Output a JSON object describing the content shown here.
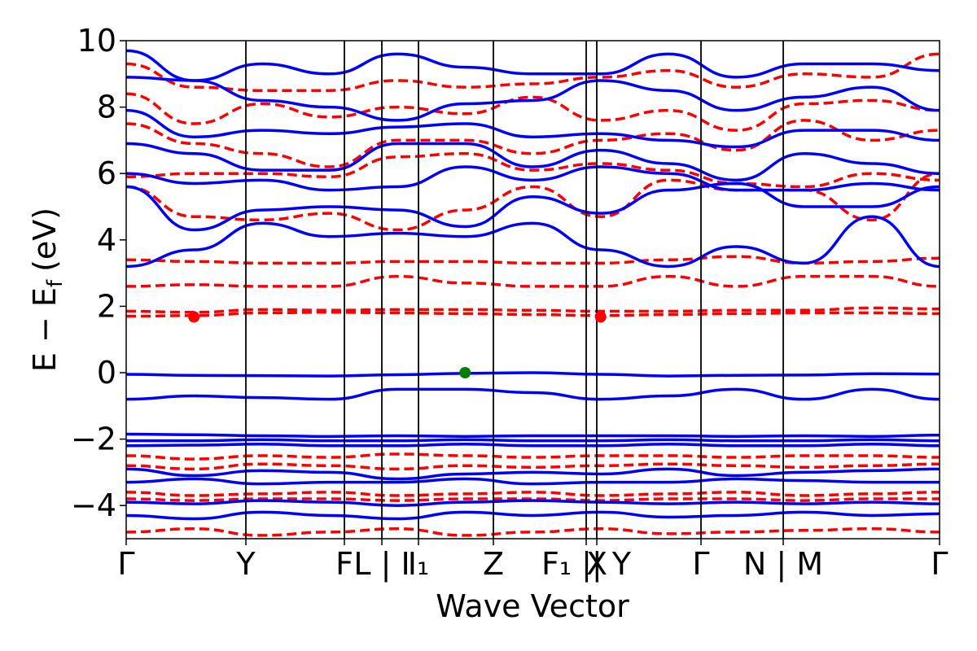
{
  "chart_data": {
    "type": "line",
    "title": "",
    "xlabel": "Wave Vector",
    "ylabel": "E − E_f (eV)",
    "ylabel_parts": {
      "main": "E − E",
      "sub": "f",
      "unit": "(eV)"
    },
    "ylim": [
      -5,
      10
    ],
    "yticks": [
      -4,
      -2,
      0,
      2,
      4,
      6,
      8,
      10
    ],
    "ytick_labels": [
      "−4",
      "−2",
      "0",
      "2",
      "4",
      "6",
      "8",
      "10"
    ],
    "k_path_labels": [
      "Γ",
      "Y",
      "F",
      "L",
      "I",
      "I₁",
      "Z",
      "F₁",
      "Y",
      "X",
      "Γ",
      "N",
      "M",
      "Γ"
    ],
    "xtick_labels": [
      "Γ",
      "Y",
      "F",
      "L | I",
      "I₁",
      "Z",
      "F₁ || Y",
      "X",
      "Γ",
      "N | M",
      "Γ"
    ],
    "grid": false,
    "legend": "none",
    "colors": {
      "spin_up": "#0000ff",
      "spin_down": "#ff0000",
      "vbm_marker": "#008000",
      "cbm_marker": "#ff0000",
      "vertical_lines": "#000000"
    },
    "series": [
      {
        "linestyle": "solid",
        "color": "#0000ff",
        "bands_at_path_points": [
          [
            -0.05,
            -0.08,
            -0.09,
            -0.1,
            -0.06,
            -0.02,
            0.0,
            -0.05,
            -0.1,
            -0.08,
            -0.07,
            -0.03,
            -0.04
          ],
          [
            -0.8,
            -0.7,
            -0.75,
            -0.8,
            -0.5,
            -0.5,
            -0.6,
            -0.8,
            -0.7,
            -0.5,
            -0.8,
            -0.5,
            -0.8
          ],
          [
            -1.85,
            -1.87,
            -1.9,
            -1.92,
            -1.9,
            -1.92,
            -1.9,
            -1.9,
            -1.9,
            -1.92,
            -1.9,
            -1.92,
            -1.88
          ],
          [
            -2.05,
            -2.05,
            -2.02,
            -2.05,
            -2.05,
            -2.02,
            -2.05,
            -2.05,
            -2.02,
            -2.05,
            -2.05,
            -2.02,
            -2.05
          ],
          [
            -2.2,
            -2.18,
            -2.15,
            -2.2,
            -2.2,
            -2.15,
            -2.2,
            -2.2,
            -2.15,
            -2.2,
            -2.2,
            -2.15,
            -2.2
          ],
          [
            -2.9,
            -3.1,
            -2.95,
            -3.0,
            -3.2,
            -3.05,
            -3.0,
            -3.05,
            -2.9,
            -3.1,
            -3.0,
            -2.95,
            -2.9
          ],
          [
            -3.3,
            -3.2,
            -3.35,
            -3.3,
            -3.3,
            -3.2,
            -3.35,
            -3.3,
            -3.3,
            -3.2,
            -3.25,
            -3.3,
            -3.3
          ],
          [
            -3.9,
            -3.95,
            -3.85,
            -3.9,
            -4.0,
            -3.9,
            -3.85,
            -3.9,
            -3.95,
            -3.9,
            -3.95,
            -3.9,
            -3.95
          ],
          [
            -4.3,
            -4.4,
            -4.2,
            -4.3,
            -4.4,
            -4.2,
            -4.3,
            -4.2,
            -4.35,
            -4.3,
            -4.2,
            -4.3,
            -4.25
          ],
          [
            3.2,
            3.7,
            4.5,
            4.1,
            4.2,
            4.1,
            4.5,
            3.7,
            3.2,
            3.8,
            3.3,
            4.7,
            3.2
          ],
          [
            5.6,
            4.3,
            4.9,
            5.0,
            4.9,
            4.4,
            5.3,
            4.8,
            5.5,
            5.7,
            5.0,
            5.0,
            5.6
          ],
          [
            6.0,
            5.7,
            5.8,
            5.5,
            5.6,
            6.2,
            5.8,
            6.2,
            6.0,
            5.5,
            5.5,
            5.7,
            5.5
          ],
          [
            6.9,
            6.6,
            6.1,
            6.1,
            6.9,
            6.9,
            6.2,
            6.7,
            6.3,
            5.8,
            6.6,
            6.3,
            6.0
          ],
          [
            7.9,
            7.1,
            7.3,
            7.2,
            7.4,
            7.5,
            7.1,
            7.2,
            7.0,
            6.8,
            7.3,
            7.3,
            7.0
          ],
          [
            8.9,
            8.8,
            8.2,
            8.0,
            7.6,
            8.1,
            8.2,
            8.8,
            8.5,
            7.9,
            8.3,
            8.6,
            7.9
          ],
          [
            9.7,
            8.8,
            9.3,
            9.0,
            9.6,
            9.2,
            9.0,
            9.0,
            9.6,
            8.9,
            9.3,
            9.3,
            9.1
          ]
        ]
      },
      {
        "linestyle": "dashed",
        "color": "#ff0000",
        "bands_at_path_points": [
          [
            1.7,
            1.72,
            1.8,
            1.82,
            1.8,
            1.78,
            1.75,
            1.72,
            1.75,
            1.78,
            1.8,
            1.8,
            1.78
          ],
          [
            1.85,
            1.82,
            1.9,
            1.88,
            1.9,
            1.9,
            1.88,
            1.85,
            1.85,
            1.88,
            1.88,
            1.95,
            1.92
          ],
          [
            2.6,
            2.65,
            2.6,
            2.6,
            2.9,
            2.7,
            2.6,
            2.6,
            2.9,
            2.6,
            2.9,
            2.9,
            2.6
          ],
          [
            3.4,
            3.35,
            3.3,
            3.3,
            3.35,
            3.35,
            3.3,
            3.3,
            3.4,
            3.5,
            3.3,
            3.35,
            3.45
          ],
          [
            5.6,
            4.7,
            4.6,
            4.8,
            4.3,
            4.9,
            5.6,
            4.7,
            5.8,
            5.5,
            5.5,
            4.6,
            6.0
          ],
          [
            5.9,
            6.0,
            6.0,
            5.9,
            6.5,
            6.6,
            6.1,
            6.3,
            6.1,
            5.7,
            5.6,
            6.0,
            5.8
          ],
          [
            7.5,
            6.9,
            6.6,
            6.2,
            7.0,
            7.0,
            6.6,
            7.0,
            7.2,
            6.7,
            7.6,
            7.0,
            7.3
          ],
          [
            8.4,
            7.5,
            8.1,
            7.7,
            8.0,
            7.8,
            8.3,
            7.6,
            7.9,
            7.3,
            8.1,
            8.2,
            7.9
          ],
          [
            9.3,
            8.6,
            8.5,
            8.5,
            8.8,
            8.6,
            8.7,
            8.9,
            9.1,
            8.6,
            9.0,
            8.9,
            9.6
          ],
          [
            -2.5,
            -2.6,
            -2.5,
            -2.55,
            -2.45,
            -2.5,
            -2.55,
            -2.5,
            -2.5,
            -2.55,
            -2.5,
            -2.5,
            -2.55
          ],
          [
            -2.8,
            -2.9,
            -2.75,
            -2.8,
            -2.9,
            -2.8,
            -2.85,
            -2.8,
            -2.75,
            -2.8,
            -2.85,
            -2.8,
            -2.75
          ],
          [
            -3.6,
            -3.7,
            -3.65,
            -3.6,
            -3.7,
            -3.65,
            -3.6,
            -3.7,
            -3.65,
            -3.6,
            -3.7,
            -3.65,
            -3.6
          ],
          [
            -3.8,
            -3.85,
            -3.8,
            -3.8,
            -3.85,
            -3.8,
            -3.8,
            -3.85,
            -3.8,
            -3.8,
            -3.85,
            -3.8,
            -3.8
          ],
          [
            -4.8,
            -4.7,
            -4.9,
            -4.8,
            -4.7,
            -4.9,
            -4.8,
            -4.7,
            -4.85,
            -4.8,
            -4.75,
            -4.7,
            -4.8
          ]
        ]
      }
    ],
    "markers": [
      {
        "name": "VBM",
        "path_index": 5,
        "y": 0.0,
        "color": "#008000"
      },
      {
        "name": "CBM",
        "path_index": 1,
        "y": 1.68,
        "color": "#ff0000"
      },
      {
        "name": "CBM",
        "path_index": 7,
        "y": 1.68,
        "color": "#ff0000"
      }
    ]
  }
}
